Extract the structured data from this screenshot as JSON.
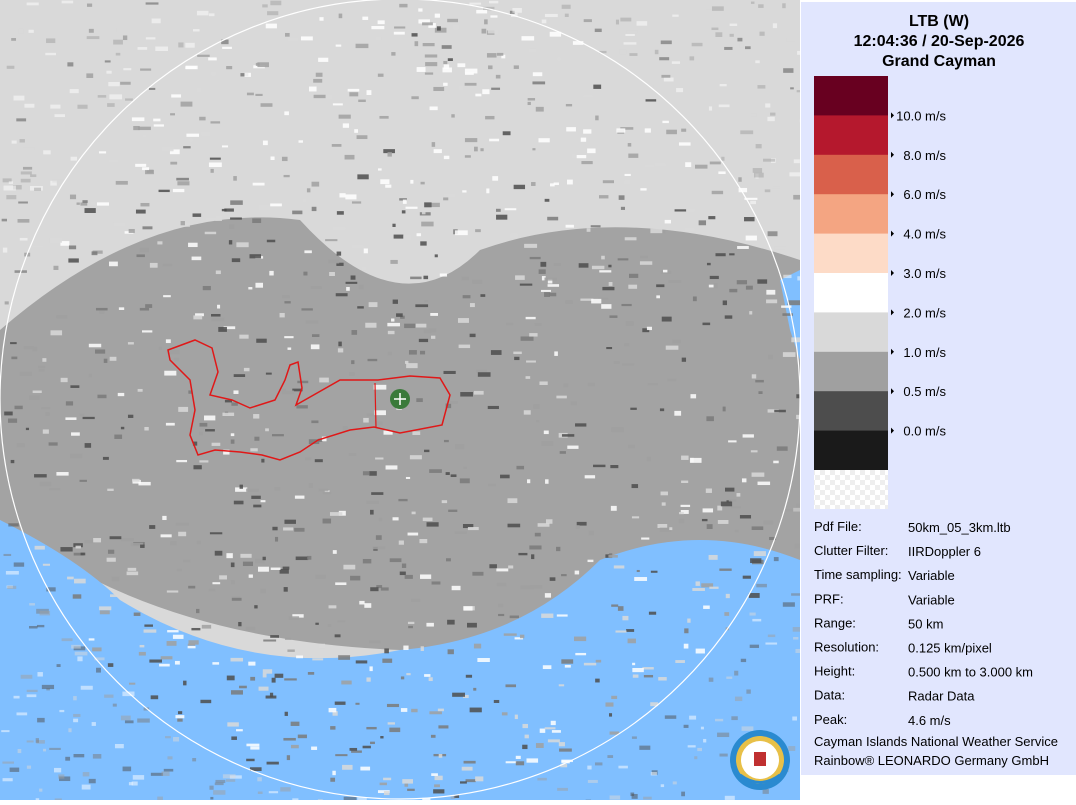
{
  "header": {
    "title": "LTB (W)",
    "timestamp": "12:04:36 / 20-Sep-2026",
    "location": "Grand Cayman"
  },
  "legend": {
    "colors": [
      "#680020",
      "#b5182d",
      "#d9604b",
      "#f4a582",
      "#fddbc7",
      "#ffffff",
      "#d9d9d9",
      "#a0a0a0",
      "#4d4d4d",
      "#1a1a1a"
    ],
    "labels": [
      "10.0 m/s",
      "8.0 m/s",
      "6.0 m/s",
      "4.0 m/s",
      "3.0 m/s",
      "2.0 m/s",
      "1.0 m/s",
      "0.5 m/s",
      "0.0 m/s"
    ]
  },
  "info": {
    "rows": [
      [
        "Pdf File:",
        "50km_05_3km.ltb"
      ],
      [
        "Clutter Filter:",
        "IIRDoppler 6"
      ],
      [
        "Time sampling:",
        "Variable"
      ],
      [
        "PRF:",
        "Variable"
      ],
      [
        "Range:",
        "50 km"
      ],
      [
        "Resolution:",
        "0.125 km/pixel"
      ],
      [
        "Height:",
        "0.500 km to 3.000 km"
      ],
      [
        "Data:",
        "Radar Data"
      ],
      [
        "Peak:",
        "4.6 m/s"
      ]
    ]
  },
  "footer": {
    "lines": [
      "Cayman Islands National Weather Service",
      "Rainbow® LEONARDO Germany GmbH"
    ]
  }
}
